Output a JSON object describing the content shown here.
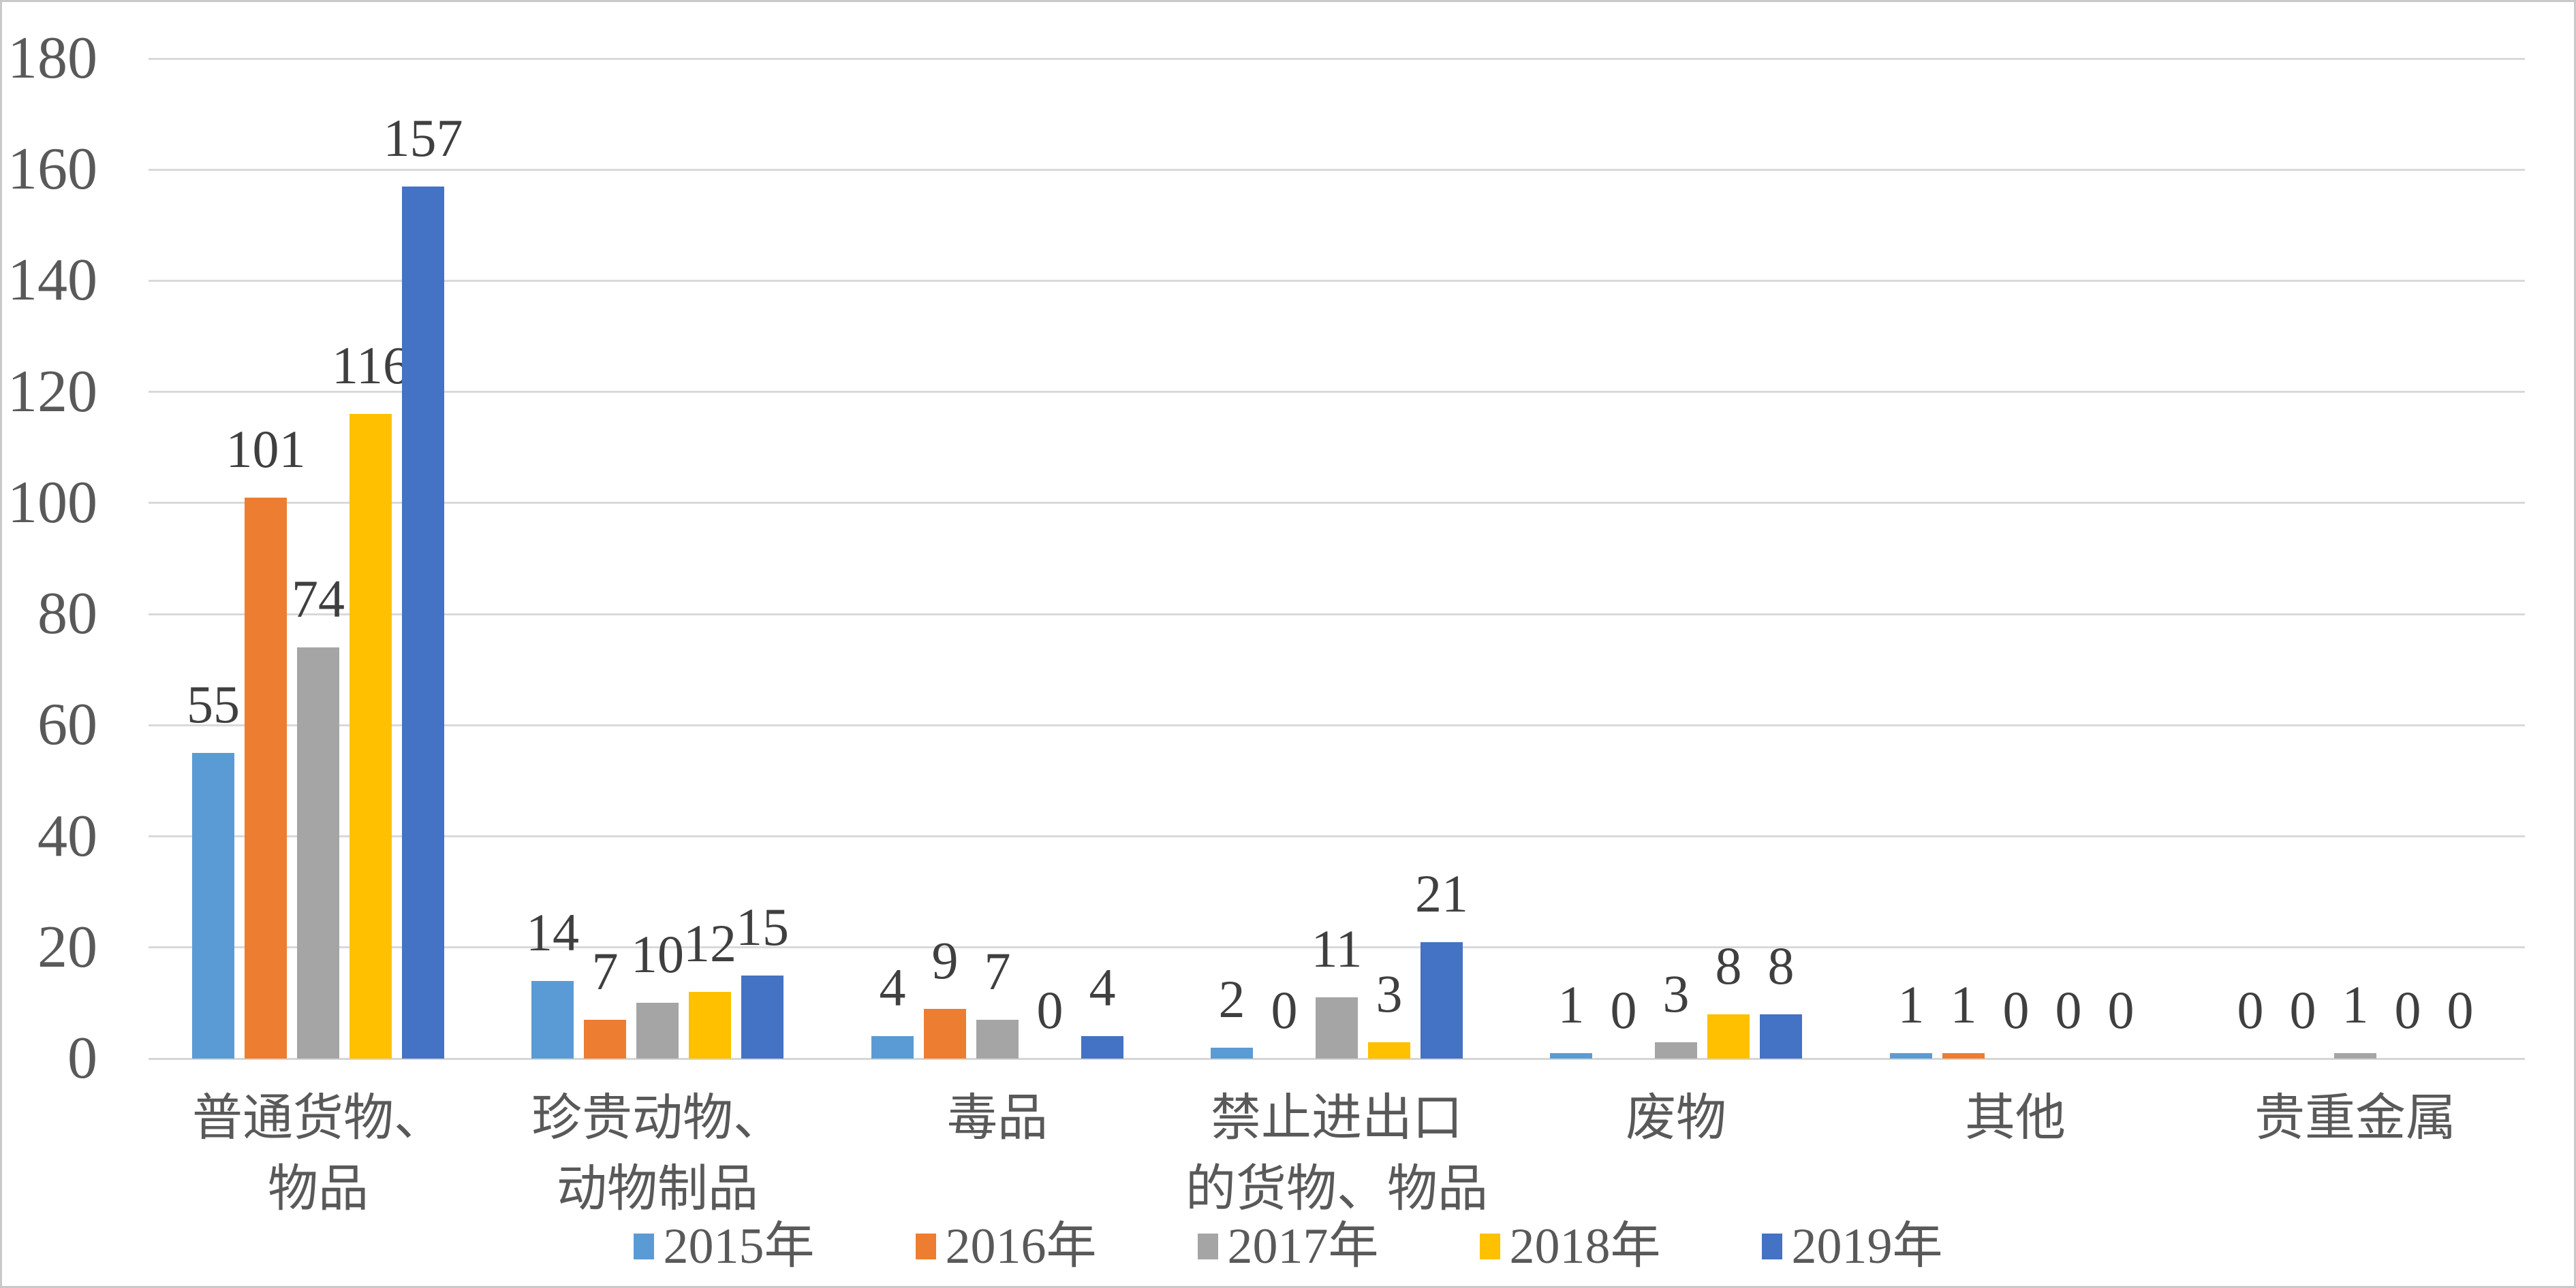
{
  "chart_data": {
    "type": "bar",
    "title": "",
    "xlabel": "",
    "ylabel": "",
    "categories": [
      "普通货物、\n物品",
      "珍贵动物、\n动物制品",
      "毒品",
      "禁止进出口\n的货物、物品",
      "废物",
      "其他",
      "贵重金属"
    ],
    "series": [
      {
        "name": "2015年",
        "color": "#5B9BD5",
        "values": [
          55,
          14,
          4,
          2,
          1,
          1,
          0
        ]
      },
      {
        "name": "2016年",
        "color": "#ED7D31",
        "values": [
          101,
          7,
          9,
          0,
          0,
          1,
          0
        ]
      },
      {
        "name": "2017年",
        "color": "#A5A5A5",
        "values": [
          74,
          10,
          7,
          11,
          3,
          0,
          1
        ]
      },
      {
        "name": "2018年",
        "color": "#FFC000",
        "values": [
          116,
          12,
          0,
          3,
          8,
          0,
          0
        ]
      },
      {
        "name": "2019年",
        "color": "#4472C4",
        "values": [
          157,
          15,
          4,
          21,
          8,
          0,
          0
        ]
      }
    ],
    "ylim": [
      0,
      180
    ],
    "ytick_step": 20,
    "yticks": [
      0,
      20,
      40,
      60,
      80,
      100,
      120,
      140,
      160,
      180
    ],
    "grid": true,
    "data_labels": true,
    "legend_position": "bottom"
  },
  "style_colors": {
    "gridline": "#d9d9d9",
    "axis_text": "#595959",
    "data_label_text": "#3f3f3f",
    "background": "#ffffff",
    "border": "#c9c9c9"
  }
}
